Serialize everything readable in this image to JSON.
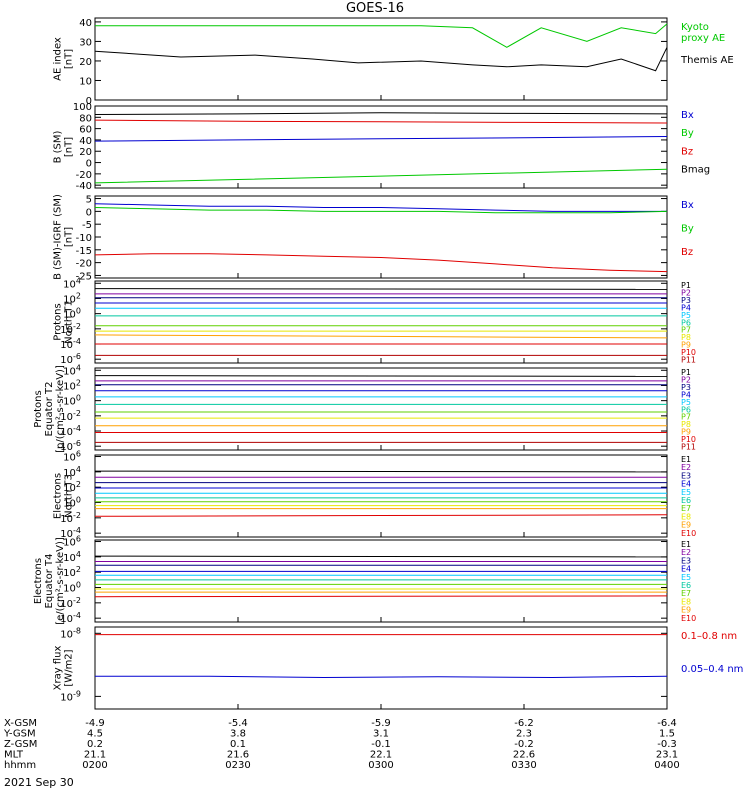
{
  "title": "GOES-16",
  "date_label": "2021 Sep 30",
  "row_labels": [
    "X-GSM",
    "Y-GSM",
    "Z-GSM",
    "MLT",
    "hhmm"
  ],
  "x_ticks": [
    {
      "rows": [
        "-4.9",
        "4.5",
        "0.2",
        "21.1",
        "0200"
      ]
    },
    {
      "rows": [
        "-5.4",
        "3.8",
        "0.1",
        "21.6",
        "0230"
      ]
    },
    {
      "rows": [
        "-5.9",
        "3.1",
        "-0.1",
        "22.1",
        "0300"
      ]
    },
    {
      "rows": [
        "-6.2",
        "2.3",
        "-0.2",
        "22.6",
        "0330"
      ]
    },
    {
      "rows": [
        "-6.4",
        "1.5",
        "-0.3",
        "23.1",
        "0400"
      ]
    }
  ],
  "colors": {
    "black": "#000000",
    "red": "#e00000",
    "green": "#00c800",
    "blue": "#0000d0",
    "navy": "#000080",
    "purple": "#8000a0",
    "cyan": "#00c8ff",
    "teal": "#00c8a0",
    "lime": "#60d000",
    "yellow": "#e8e800",
    "orange": "#ffa000",
    "darkred": "#b00000"
  },
  "chart_data": [
    {
      "type": "line",
      "ylabel": [
        "AE index",
        "[nT]"
      ],
      "ylim": [
        0,
        42
      ],
      "yscale": "linear",
      "yticks": [
        0,
        10,
        20,
        30,
        40
      ],
      "yticklabels": [
        "0",
        "10",
        "20",
        "30",
        "40"
      ],
      "x": [
        0,
        0.15,
        0.28,
        0.38,
        0.46,
        0.57,
        0.66,
        0.72,
        0.78,
        0.86,
        0.92,
        0.98,
        1.0
      ],
      "series": [
        {
          "name": "Kyoto proxy AE",
          "legend": [
            "Kyoto",
            "proxy AE"
          ],
          "color": "green",
          "values": [
            38,
            38,
            38,
            38,
            38,
            38,
            37,
            27,
            37,
            30,
            37,
            34,
            39
          ]
        },
        {
          "name": "Themis AE",
          "legend": [
            "Themis AE"
          ],
          "color": "black",
          "values": [
            25,
            22,
            23,
            21,
            19,
            20,
            18,
            17,
            18,
            17,
            21,
            15,
            27
          ]
        }
      ]
    },
    {
      "type": "line",
      "ylabel": [
        "B (SM)",
        "[nT]"
      ],
      "ylim": [
        -45,
        100
      ],
      "yscale": "linear",
      "yticks": [
        -40,
        -20,
        0,
        20,
        40,
        60,
        80,
        100
      ],
      "yticklabels": [
        "-40",
        "-20",
        "0",
        "20",
        "40",
        "60",
        "80",
        "100"
      ],
      "x": [
        0,
        0.25,
        0.5,
        0.75,
        1.0
      ],
      "series": [
        {
          "name": "Bx",
          "legend": [
            "Bx"
          ],
          "color": "blue",
          "values": [
            38,
            40,
            42,
            44,
            46
          ]
        },
        {
          "name": "By",
          "legend": [
            "By"
          ],
          "color": "green",
          "values": [
            -36,
            -30,
            -24,
            -18,
            -12
          ]
        },
        {
          "name": "Bz",
          "legend": [
            "Bz"
          ],
          "color": "red",
          "values": [
            75,
            73,
            72,
            71,
            70
          ]
        },
        {
          "name": "Bmag",
          "legend": [
            "Bmag"
          ],
          "color": "black",
          "values": [
            85,
            86,
            88,
            87,
            86
          ]
        }
      ]
    },
    {
      "type": "line",
      "ylabel": [
        "B (SM)-IGRF (SM)",
        "[nT]"
      ],
      "ylim": [
        -26,
        6
      ],
      "yscale": "linear",
      "yticks": [
        -25,
        -20,
        -15,
        -10,
        -5,
        0,
        5
      ],
      "yticklabels": [
        "-25",
        "-20",
        "-15",
        "-10",
        "-5",
        "0",
        "5"
      ],
      "x": [
        0,
        0.1,
        0.2,
        0.3,
        0.4,
        0.5,
        0.6,
        0.7,
        0.8,
        0.9,
        1.0
      ],
      "series": [
        {
          "name": "Bx",
          "legend": [
            "Bx"
          ],
          "color": "blue",
          "values": [
            3,
            2.5,
            2,
            2,
            1.5,
            1.5,
            1,
            0.5,
            0,
            0,
            0
          ]
        },
        {
          "name": "By",
          "legend": [
            "By"
          ],
          "color": "green",
          "values": [
            1.5,
            1,
            0.5,
            0.5,
            0,
            0,
            0,
            -0.5,
            -0.5,
            -0.5,
            0
          ]
        },
        {
          "name": "Bz",
          "legend": [
            "Bz"
          ],
          "color": "red",
          "values": [
            -17,
            -16.5,
            -16.5,
            -17,
            -17.5,
            -18,
            -19,
            -20.5,
            -22,
            -23,
            -23.5
          ]
        }
      ]
    },
    {
      "type": "line",
      "ylabel": [
        "Protons",
        "North T1"
      ],
      "ylim": [
        -6.5,
        4.3
      ],
      "yscale": "log",
      "yticks": [
        -6,
        -4,
        -2,
        0,
        2,
        4
      ],
      "yticklabels": [
        "10^-6",
        "10^-4",
        "10^-2",
        "10^0",
        "10^2",
        "10^4"
      ],
      "x": [
        0,
        1
      ],
      "series": [
        {
          "name": "P1",
          "legend": [
            "P1"
          ],
          "color": "black",
          "values": [
            3.3,
            3.2
          ]
        },
        {
          "name": "P2",
          "legend": [
            "P2"
          ],
          "color": "purple",
          "values": [
            2.6,
            2.6
          ]
        },
        {
          "name": "P3",
          "legend": [
            "P3"
          ],
          "color": "navy",
          "values": [
            2.1,
            2.1
          ]
        },
        {
          "name": "P4",
          "legend": [
            "P4"
          ],
          "color": "blue",
          "values": [
            1.4,
            1.4
          ]
        },
        {
          "name": "P5",
          "legend": [
            "P5"
          ],
          "color": "cyan",
          "values": [
            0.7,
            0.7
          ]
        },
        {
          "name": "P6",
          "legend": [
            "P6"
          ],
          "color": "teal",
          "values": [
            -0.3,
            -0.3
          ]
        },
        {
          "name": "P7",
          "legend": [
            "P7"
          ],
          "color": "lime",
          "values": [
            -1.6,
            -1.6
          ]
        },
        {
          "name": "P8",
          "legend": [
            "P8"
          ],
          "color": "yellow",
          "values": [
            -2.3,
            -2.3
          ]
        },
        {
          "name": "P9",
          "legend": [
            "P9"
          ],
          "color": "orange",
          "values": [
            -2.8,
            -3.2
          ]
        },
        {
          "name": "P10",
          "legend": [
            "P10"
          ],
          "color": "red",
          "values": [
            -4,
            -4
          ]
        },
        {
          "name": "P11",
          "legend": [
            "P11"
          ],
          "color": "darkred",
          "values": [
            -5.5,
            -5.5
          ]
        }
      ]
    },
    {
      "type": "line",
      "ylabel": [
        "Protons",
        "Equator T2",
        "[p/(cm²-s-sr-keV)]"
      ],
      "ylim": [
        -6.5,
        4.3
      ],
      "yscale": "log",
      "yticks": [
        -6,
        -4,
        -2,
        0,
        2,
        4
      ],
      "yticklabels": [
        "10^-6",
        "10^-4",
        "10^-2",
        "10^0",
        "10^2",
        "10^4"
      ],
      "x": [
        0,
        1
      ],
      "series": [
        {
          "name": "P1",
          "legend": [
            "P1"
          ],
          "color": "black",
          "values": [
            3.3,
            3.2
          ]
        },
        {
          "name": "P2",
          "legend": [
            "P2"
          ],
          "color": "purple",
          "values": [
            2.6,
            2.6
          ]
        },
        {
          "name": "P3",
          "legend": [
            "P3"
          ],
          "color": "navy",
          "values": [
            2.1,
            2.1
          ]
        },
        {
          "name": "P4",
          "legend": [
            "P4"
          ],
          "color": "blue",
          "values": [
            1.3,
            1.3
          ]
        },
        {
          "name": "P5",
          "legend": [
            "P5"
          ],
          "color": "cyan",
          "values": [
            0.5,
            0.5
          ]
        },
        {
          "name": "P6",
          "legend": [
            "P6"
          ],
          "color": "teal",
          "values": [
            -0.5,
            -0.5
          ]
        },
        {
          "name": "P7",
          "legend": [
            "P7"
          ],
          "color": "lime",
          "values": [
            -1.5,
            -1.5
          ]
        },
        {
          "name": "P8",
          "legend": [
            "P8"
          ],
          "color": "yellow",
          "values": [
            -2.3,
            -2.3
          ]
        },
        {
          "name": "P9",
          "legend": [
            "P9"
          ],
          "color": "orange",
          "values": [
            -3.3,
            -3.3
          ]
        },
        {
          "name": "P10",
          "legend": [
            "P10"
          ],
          "color": "red",
          "values": [
            -4.2,
            -4.2
          ]
        },
        {
          "name": "P11",
          "legend": [
            "P11"
          ],
          "color": "darkred",
          "values": [
            -5.5,
            -5.5
          ]
        }
      ]
    },
    {
      "type": "line",
      "ylabel": [
        "Electrons",
        "North T3"
      ],
      "ylim": [
        -4.5,
        6.2
      ],
      "yscale": "log",
      "yticks": [
        -4,
        -2,
        0,
        2,
        4,
        6
      ],
      "yticklabels": [
        "10^-4",
        "10^-2",
        "10^0",
        "10^2",
        "10^4",
        "10^6"
      ],
      "x": [
        0,
        1
      ],
      "series": [
        {
          "name": "E1",
          "legend": [
            "E1"
          ],
          "color": "black",
          "values": [
            4.1,
            4.0
          ]
        },
        {
          "name": "E2",
          "legend": [
            "E2"
          ],
          "color": "purple",
          "values": [
            3.3,
            3.3
          ]
        },
        {
          "name": "E3",
          "legend": [
            "E3"
          ],
          "color": "navy",
          "values": [
            2.6,
            2.6
          ]
        },
        {
          "name": "E4",
          "legend": [
            "E4"
          ],
          "color": "blue",
          "values": [
            1.9,
            1.9
          ]
        },
        {
          "name": "E5",
          "legend": [
            "E5"
          ],
          "color": "cyan",
          "values": [
            1.2,
            1.2
          ]
        },
        {
          "name": "E6",
          "legend": [
            "E6"
          ],
          "color": "teal",
          "values": [
            0.6,
            0.6
          ]
        },
        {
          "name": "E7",
          "legend": [
            "E7"
          ],
          "color": "lime",
          "values": [
            0.1,
            0.1
          ]
        },
        {
          "name": "E8",
          "legend": [
            "E8"
          ],
          "color": "yellow",
          "values": [
            -0.4,
            -0.4
          ]
        },
        {
          "name": "E9",
          "legend": [
            "E9"
          ],
          "color": "orange",
          "values": [
            -0.8,
            -0.8
          ]
        },
        {
          "name": "E10",
          "legend": [
            "E10"
          ],
          "color": "red",
          "values": [
            -1.8,
            -1.6
          ]
        }
      ]
    },
    {
      "type": "line",
      "ylabel": [
        "Electrons",
        "Equator T4",
        "[e/(cm²-s-sr-keV)]"
      ],
      "ylim": [
        -4.5,
        6.2
      ],
      "yscale": "log",
      "yticks": [
        -4,
        -2,
        0,
        2,
        4,
        6
      ],
      "yticklabels": [
        "10^-4",
        "10^-2",
        "10^0",
        "10^2",
        "10^4",
        "10^6"
      ],
      "x": [
        0,
        1
      ],
      "series": [
        {
          "name": "E1",
          "legend": [
            "E1"
          ],
          "color": "black",
          "values": [
            4.1,
            4.0
          ]
        },
        {
          "name": "E2",
          "legend": [
            "E2"
          ],
          "color": "purple",
          "values": [
            3.4,
            3.4
          ]
        },
        {
          "name": "E3",
          "legend": [
            "E3"
          ],
          "color": "navy",
          "values": [
            2.9,
            2.9
          ]
        },
        {
          "name": "E4",
          "legend": [
            "E4"
          ],
          "color": "blue",
          "values": [
            2.1,
            2.1
          ]
        },
        {
          "name": "E5",
          "legend": [
            "E5"
          ],
          "color": "cyan",
          "values": [
            1.6,
            1.6
          ]
        },
        {
          "name": "E6",
          "legend": [
            "E6"
          ],
          "color": "teal",
          "values": [
            1.0,
            1.0
          ]
        },
        {
          "name": "E7",
          "legend": [
            "E7"
          ],
          "color": "lime",
          "values": [
            0.4,
            0.4
          ]
        },
        {
          "name": "E8",
          "legend": [
            "E8"
          ],
          "color": "yellow",
          "values": [
            -0.2,
            -0.2
          ]
        },
        {
          "name": "E9",
          "legend": [
            "E9"
          ],
          "color": "orange",
          "values": [
            -0.6,
            -0.6
          ]
        },
        {
          "name": "E10",
          "legend": [
            "E10"
          ],
          "color": "red",
          "values": [
            -1.2,
            -1.1
          ]
        }
      ]
    },
    {
      "type": "line",
      "ylabel": [
        "Xray flux",
        "[W/m2]"
      ],
      "ylim": [
        -9.2,
        -7.9
      ],
      "yscale": "log",
      "yticks": [
        -9,
        -8
      ],
      "yticklabels": [
        "10^-9",
        "10^-8"
      ],
      "x": [
        0,
        0.2,
        0.4,
        0.6,
        0.8,
        1.0
      ],
      "series": [
        {
          "name": "0.1-0.8 nm",
          "legend": [
            "0.1–0.8 nm"
          ],
          "color": "red",
          "values": [
            -8.02,
            -8.02,
            -8.02,
            -8.02,
            -8.02,
            -8.02
          ]
        },
        {
          "name": "0.05-0.4 nm",
          "legend": [
            "0.05–0.4 nm"
          ],
          "color": "blue",
          "values": [
            -8.68,
            -8.68,
            -8.7,
            -8.69,
            -8.7,
            -8.68
          ]
        }
      ]
    }
  ]
}
